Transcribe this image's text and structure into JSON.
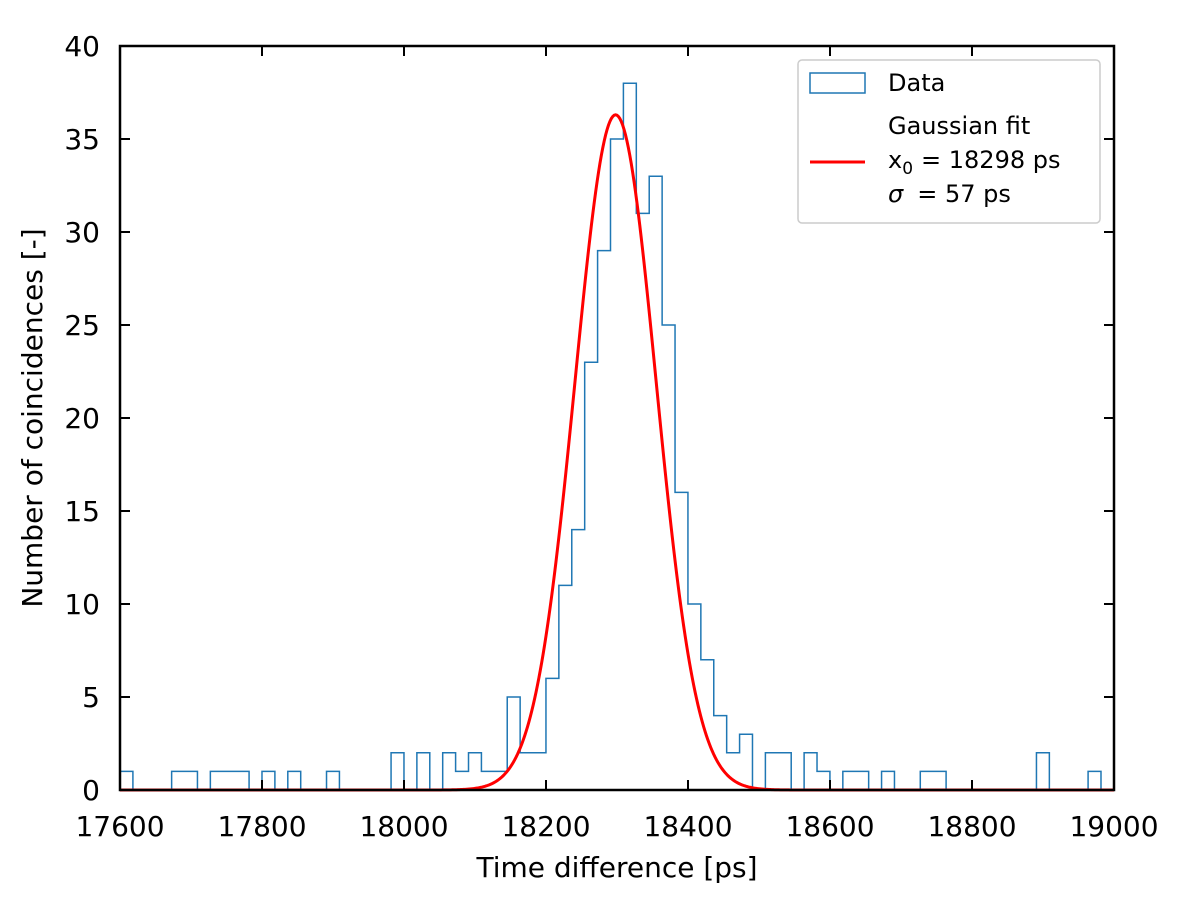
{
  "chart_data": {
    "type": "bar",
    "subtype": "step-histogram-with-fit",
    "xlabel": "Time difference [ps]",
    "ylabel": "Number of coincidences [-]",
    "xlim": [
      17600,
      19000
    ],
    "ylim": [
      0,
      40
    ],
    "xticks": [
      17600,
      17800,
      18000,
      18200,
      18400,
      18600,
      18800,
      19000
    ],
    "yticks": [
      0,
      5,
      10,
      15,
      20,
      25,
      30,
      35,
      40
    ],
    "bin_width": 18.18,
    "histogram": {
      "name": "Data",
      "color": "#1f77b4",
      "values": [
        1,
        0,
        0,
        0,
        1,
        1,
        0,
        1,
        1,
        1,
        0,
        1,
        0,
        1,
        0,
        0,
        1,
        0,
        0,
        0,
        0,
        2,
        0,
        2,
        0,
        2,
        1,
        2,
        1,
        1,
        5,
        2,
        2,
        6,
        11,
        14,
        23,
        29,
        35,
        38,
        31,
        33,
        25,
        16,
        10,
        7,
        4,
        2,
        3,
        0,
        2,
        2,
        0,
        2,
        1,
        0,
        1,
        1,
        0,
        1,
        0,
        0,
        1,
        1,
        0,
        0,
        0,
        0,
        0,
        0,
        0,
        2,
        0,
        0,
        0,
        1,
        0
      ]
    },
    "fit": {
      "name_lines": [
        "Gaussian fit",
        "= 18298 ps",
        "= 57 ps"
      ],
      "x0_symbol": "x",
      "x0_subscript": "0",
      "sigma_symbol": "σ",
      "color": "#ff0000",
      "amplitude": 36.3,
      "x0": 18298,
      "sigma": 57
    },
    "legend": {
      "placement": "top-right",
      "entries": [
        "Data",
        "Gaussian fit"
      ]
    },
    "grid": false
  }
}
